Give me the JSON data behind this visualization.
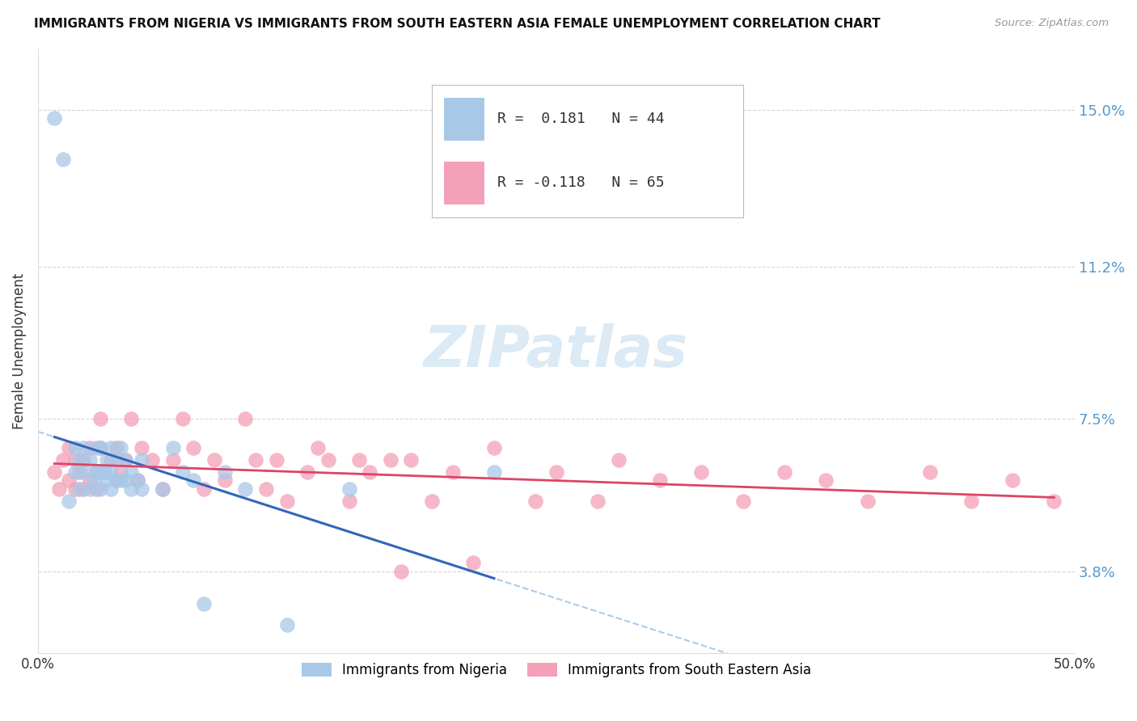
{
  "title": "IMMIGRANTS FROM NIGERIA VS IMMIGRANTS FROM SOUTH EASTERN ASIA FEMALE UNEMPLOYMENT CORRELATION CHART",
  "source": "Source: ZipAtlas.com",
  "ylabel": "Female Unemployment",
  "yticks": [
    3.8,
    7.5,
    11.2,
    15.0
  ],
  "xlim": [
    0.0,
    0.5
  ],
  "ylim": [
    0.018,
    0.165
  ],
  "nigeria_R": 0.181,
  "nigeria_N": 44,
  "sea_R": -0.118,
  "sea_N": 65,
  "nigeria_color": "#a8c8e8",
  "sea_color": "#f4a0b8",
  "nigeria_line_color": "#3366bb",
  "sea_line_color": "#dd4466",
  "dashed_line_color": "#aaccee",
  "background_color": "#ffffff",
  "grid_color": "#cccccc",
  "nigeria_x": [
    0.008,
    0.012,
    0.015,
    0.018,
    0.018,
    0.02,
    0.02,
    0.022,
    0.022,
    0.025,
    0.025,
    0.027,
    0.028,
    0.028,
    0.03,
    0.03,
    0.03,
    0.032,
    0.033,
    0.033,
    0.035,
    0.035,
    0.035,
    0.038,
    0.038,
    0.04,
    0.04,
    0.042,
    0.042,
    0.045,
    0.045,
    0.048,
    0.05,
    0.05,
    0.06,
    0.065,
    0.07,
    0.075,
    0.08,
    0.09,
    0.1,
    0.12,
    0.15,
    0.22
  ],
  "nigeria_y": [
    0.148,
    0.138,
    0.055,
    0.062,
    0.068,
    0.058,
    0.065,
    0.062,
    0.068,
    0.058,
    0.065,
    0.06,
    0.062,
    0.068,
    0.058,
    0.062,
    0.068,
    0.062,
    0.06,
    0.065,
    0.058,
    0.062,
    0.068,
    0.06,
    0.065,
    0.06,
    0.068,
    0.06,
    0.065,
    0.058,
    0.062,
    0.06,
    0.058,
    0.065,
    0.058,
    0.068,
    0.062,
    0.06,
    0.03,
    0.062,
    0.058,
    0.025,
    0.058,
    0.062
  ],
  "sea_x": [
    0.008,
    0.01,
    0.012,
    0.015,
    0.015,
    0.018,
    0.018,
    0.02,
    0.022,
    0.022,
    0.025,
    0.025,
    0.028,
    0.028,
    0.03,
    0.03,
    0.032,
    0.035,
    0.038,
    0.038,
    0.04,
    0.042,
    0.045,
    0.048,
    0.05,
    0.055,
    0.06,
    0.065,
    0.07,
    0.075,
    0.08,
    0.085,
    0.09,
    0.1,
    0.105,
    0.11,
    0.115,
    0.12,
    0.13,
    0.135,
    0.14,
    0.15,
    0.155,
    0.16,
    0.17,
    0.175,
    0.18,
    0.19,
    0.2,
    0.21,
    0.22,
    0.24,
    0.25,
    0.27,
    0.28,
    0.3,
    0.32,
    0.34,
    0.36,
    0.38,
    0.4,
    0.43,
    0.45,
    0.47,
    0.49
  ],
  "sea_y": [
    0.062,
    0.058,
    0.065,
    0.06,
    0.068,
    0.058,
    0.065,
    0.062,
    0.058,
    0.065,
    0.06,
    0.068,
    0.058,
    0.062,
    0.068,
    0.075,
    0.062,
    0.065,
    0.06,
    0.068,
    0.062,
    0.065,
    0.075,
    0.06,
    0.068,
    0.065,
    0.058,
    0.065,
    0.075,
    0.068,
    0.058,
    0.065,
    0.06,
    0.075,
    0.065,
    0.058,
    0.065,
    0.055,
    0.062,
    0.068,
    0.065,
    0.055,
    0.065,
    0.062,
    0.065,
    0.038,
    0.065,
    0.055,
    0.062,
    0.04,
    0.068,
    0.055,
    0.062,
    0.055,
    0.065,
    0.06,
    0.062,
    0.055,
    0.062,
    0.06,
    0.055,
    0.062,
    0.055,
    0.06,
    0.055
  ]
}
